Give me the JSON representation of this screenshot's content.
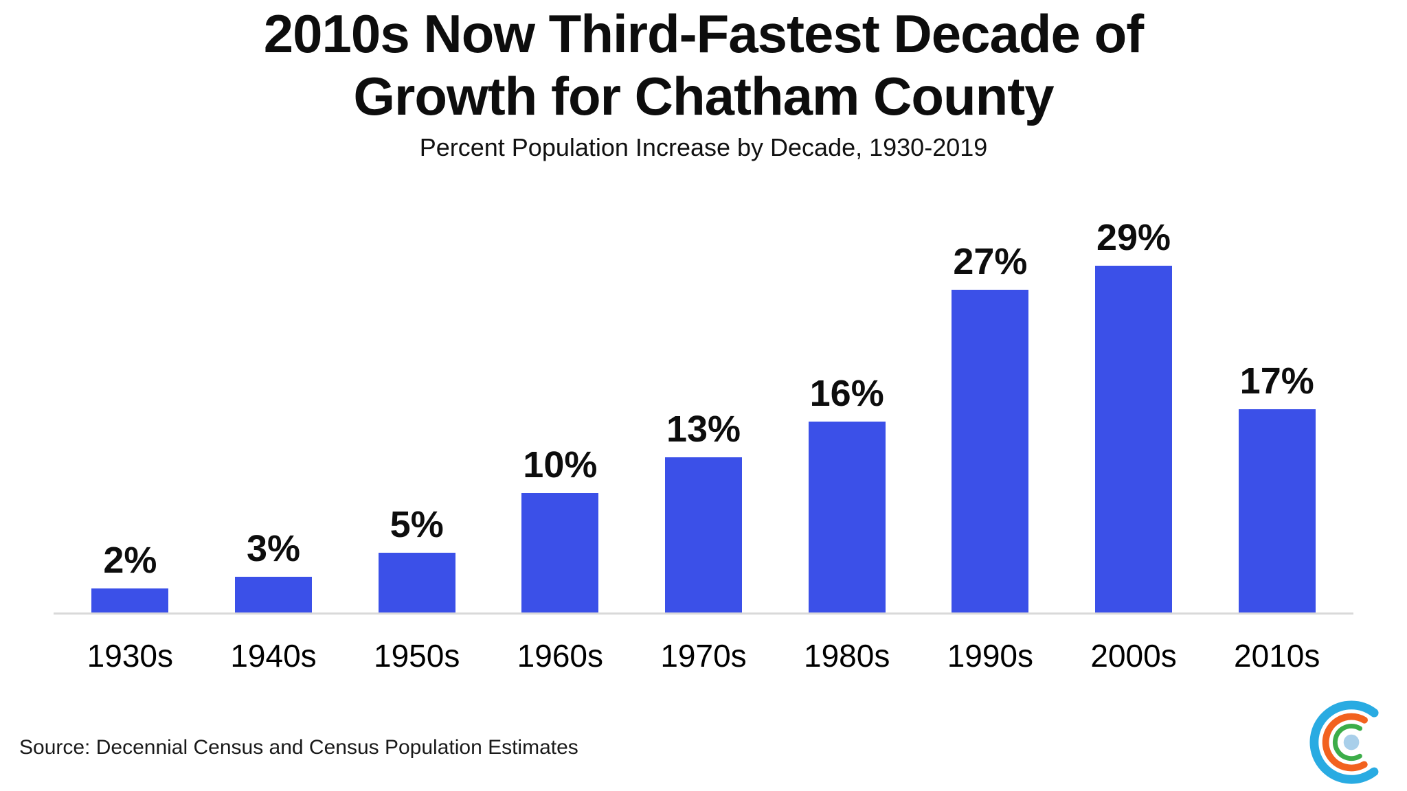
{
  "header": {
    "title_line1": "2010s Now Third-Fastest Decade of",
    "title_line2": "Growth for Chatham County",
    "subtitle": "Percent Population Increase by Decade, 1930-2019"
  },
  "footer": {
    "source": "Source: Decennial Census and Census Population Estimates"
  },
  "logo": {
    "icon": "concentric-c-logo",
    "outer_arc_color": "#29ABE2",
    "middle_arc_color": "#F2621F",
    "inner_arc_color": "#3CAD49",
    "center_dot_color": "#A9CFEA"
  },
  "chart_data": {
    "type": "bar",
    "title": "2010s Now Third-Fastest Decade of Growth for Chatham County",
    "subtitle": "Percent Population Increase by Decade, 1930-2019",
    "categories": [
      "1930s",
      "1940s",
      "1950s",
      "1960s",
      "1970s",
      "1980s",
      "1990s",
      "2000s",
      "2010s"
    ],
    "values": [
      2,
      3,
      5,
      10,
      13,
      16,
      27,
      29,
      17
    ],
    "value_labels": [
      "2%",
      "3%",
      "5%",
      "10%",
      "13%",
      "16%",
      "27%",
      "29%",
      "17%"
    ],
    "xlabel": "",
    "ylabel": "",
    "ylim": [
      0,
      30
    ],
    "grid": false,
    "legend": false,
    "bar_color": "#3B50E8",
    "axis_line_color": "#D9D9D9"
  }
}
